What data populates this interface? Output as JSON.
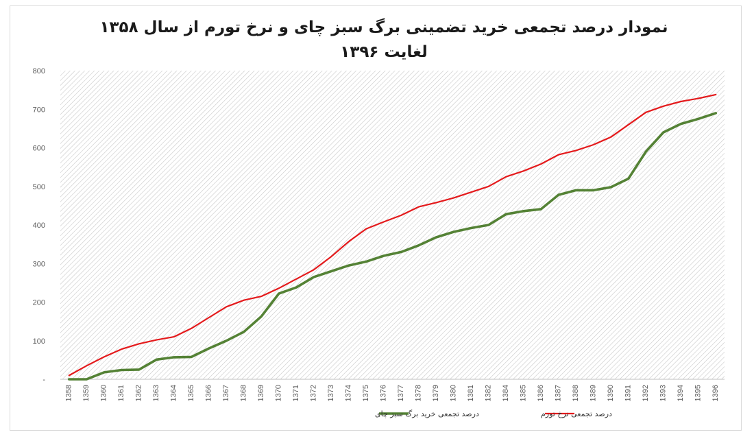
{
  "chart_data": {
    "type": "line",
    "title": "نمودار درصد تجمعی خرید تضمینی برگ سبز چای و نرخ تورم از سال ۱۳۵۸ لغایت ۱۳۹۶",
    "xlabel": "",
    "ylabel": "",
    "ylim": [
      0,
      800
    ],
    "yticks": [
      0,
      100,
      200,
      300,
      400,
      500,
      600,
      700,
      800
    ],
    "ytick_labels": [
      "-",
      "100",
      "200",
      "300",
      "400",
      "500",
      "600",
      "700",
      "800"
    ],
    "grid": "diagonal hatch fill",
    "legend_position": "bottom",
    "x": [
      "1358",
      "1359",
      "1360",
      "1361",
      "1362",
      "1363",
      "1364",
      "1365",
      "1366",
      "1367",
      "1368",
      "1369",
      "1370",
      "1371",
      "1372",
      "1373",
      "1374",
      "1375",
      "1376",
      "1377",
      "1378",
      "1379",
      "1380",
      "1381",
      "1382",
      "1384",
      "1385",
      "1386",
      "1387",
      "1388",
      "1389",
      "1390",
      "1391",
      "1392",
      "1393",
      "1394",
      "1395",
      "1396"
    ],
    "series": [
      {
        "name": "درصد تجمعی نرخ تورم",
        "color": "#e41a1c",
        "values": [
          10,
          35,
          58,
          78,
          92,
          102,
          110,
          132,
          160,
          188,
          205,
          215,
          236,
          260,
          284,
          318,
          357,
          390,
          408,
          425,
          447,
          458,
          470,
          485,
          500,
          525,
          540,
          558,
          582,
          593,
          608,
          628,
          660,
          692,
          708,
          720,
          728,
          738
        ]
      },
      {
        "name": "درصد تجمعی خرید برگ سبز چای",
        "color": "#548235",
        "values": [
          0,
          0,
          18,
          24,
          25,
          51,
          57,
          58,
          80,
          100,
          123,
          163,
          222,
          238,
          265,
          280,
          295,
          305,
          320,
          330,
          347,
          368,
          382,
          392,
          400,
          428,
          436,
          441,
          478,
          490,
          490,
          498,
          520,
          590,
          640,
          662,
          675,
          690
        ]
      }
    ]
  }
}
